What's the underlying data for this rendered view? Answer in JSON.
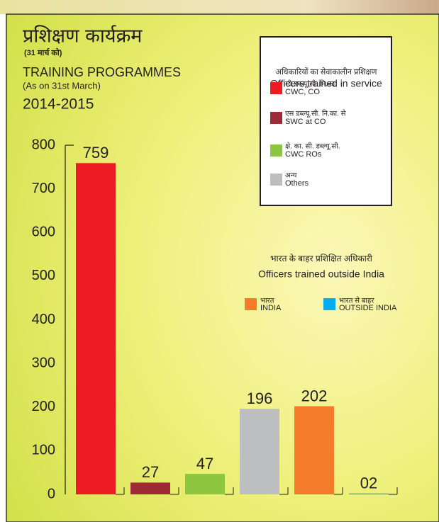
{
  "chart_data": {
    "type": "bar",
    "title": "प्रशिक्षण कार्यक्रम",
    "title_note": "(31 मार्च को)",
    "subtitle": "TRAINING PROGRAMMES",
    "subtitle_note": "(As on 31st March)",
    "period": "2014-2015",
    "categories": [
      null,
      null,
      null,
      null,
      null,
      null
    ],
    "values": [
      759,
      27,
      47,
      196,
      202,
      2
    ],
    "value_labels": [
      "759",
      "27",
      "47",
      "196",
      "202",
      "02"
    ],
    "colors": [
      "#ed1c24",
      "#9e2a35",
      "#8dc63f",
      "#bcbec0",
      "#f37b2a",
      "#00aeef"
    ],
    "ylim": [
      0,
      800
    ],
    "yticks": [
      0,
      100,
      200,
      300,
      400,
      500,
      600,
      700,
      800
    ],
    "grid": false,
    "legends": [
      {
        "title": "अधिकारियों का सेवाकालीन प्रशिक्षण",
        "title_en": "Officers trained in service",
        "items": [
          {
            "name": "सी.डब्ल्यू.सी. नि.का.",
            "name_en": "CWC, CO",
            "color": "#ed1c24"
          },
          {
            "name": "एस डब्ल्यू.सी. नि.का. से",
            "name_en": "SWC at CO",
            "color": "#9e2a35"
          },
          {
            "name": "क्षे. का. सी. डब्ल्यू.सी.",
            "name_en": "CWC ROs",
            "color": "#8dc63f"
          },
          {
            "name": "अन्य",
            "name_en": "Others",
            "color": "#bcbec0"
          }
        ]
      },
      {
        "title": "भारत के बाहर प्रशिक्षित अधिकारी",
        "title_en": "Officers trained outside India",
        "items": [
          {
            "name": "भारत",
            "name_en": "INDIA",
            "color": "#f37b2a"
          },
          {
            "name": "भारत से बाहर",
            "name_en": "OUTSIDE INDIA",
            "color": "#00aeef"
          }
        ]
      }
    ]
  }
}
